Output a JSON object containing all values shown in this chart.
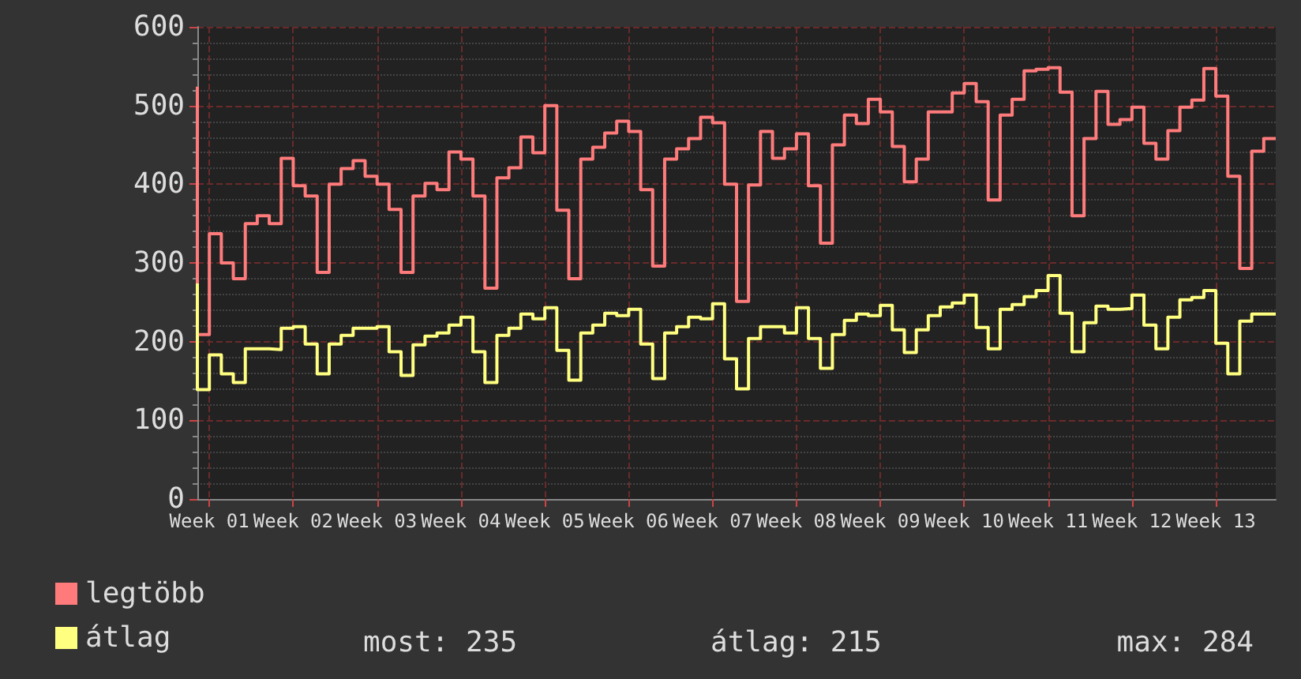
{
  "chart_data": {
    "type": "step",
    "categories": [
      null,
      "Week 01",
      null,
      null,
      null,
      null,
      null,
      null,
      "Week 02",
      null,
      null,
      null,
      null,
      null,
      null,
      "Week 03",
      null,
      null,
      null,
      null,
      null,
      null,
      "Week 04",
      null,
      null,
      null,
      null,
      null,
      null,
      "Week 05",
      null,
      null,
      null,
      null,
      null,
      null,
      "Week 06",
      null,
      null,
      null,
      null,
      null,
      null,
      "Week 07",
      null,
      null,
      null,
      null,
      null,
      null,
      "Week 08",
      null,
      null,
      null,
      null,
      null,
      null,
      "Week 09",
      null,
      null,
      null,
      null,
      null,
      null,
      "Week 10",
      null,
      null,
      null,
      null,
      null,
      null,
      "Week 11",
      null,
      null,
      null,
      null,
      null,
      null,
      "Week 12",
      null,
      null,
      null,
      null,
      null,
      null,
      "Week 13",
      null,
      null,
      null,
      null,
      null
    ],
    "series": [
      {
        "name": "legtöbb",
        "color": "#ff7b7b",
        "values": [
          524,
          209,
          337,
          300,
          280,
          350,
          360,
          350,
          433,
          398,
          385,
          288,
          400,
          420,
          430,
          410,
          400,
          368,
          288,
          385,
          401,
          393,
          441,
          432,
          385,
          268,
          408,
          421,
          460,
          440,
          500,
          367,
          280,
          432,
          447,
          465,
          480,
          467,
          393,
          296,
          432,
          445,
          458,
          485,
          478,
          400,
          251,
          399,
          467,
          433,
          445,
          464,
          398,
          325,
          450,
          488,
          477,
          508,
          492,
          448,
          403,
          432,
          492,
          492,
          516,
          528,
          505,
          380,
          488,
          508,
          544,
          546,
          548,
          517,
          360,
          458,
          518,
          476,
          482,
          498,
          452,
          432,
          468,
          498,
          507,
          547,
          512,
          410,
          293,
          442,
          458
        ]
      },
      {
        "name": "átlag",
        "color": "#ffff80",
        "values": [
          274,
          139,
          183,
          159,
          148,
          191,
          191,
          190,
          217,
          219,
          197,
          159,
          197,
          208,
          217,
          217,
          219,
          187,
          157,
          196,
          207,
          211,
          221,
          231,
          187,
          148,
          208,
          217,
          235,
          229,
          243,
          189,
          151,
          211,
          221,
          236,
          233,
          241,
          197,
          153,
          211,
          219,
          231,
          229,
          248,
          178,
          140,
          204,
          219,
          219,
          211,
          243,
          204,
          166,
          209,
          227,
          235,
          233,
          246,
          215,
          186,
          215,
          233,
          244,
          249,
          259,
          218,
          191,
          241,
          247,
          257,
          265,
          284,
          236,
          187,
          224,
          245,
          241,
          242,
          259,
          221,
          191,
          231,
          253,
          256,
          265,
          198,
          159,
          226,
          235,
          235
        ]
      }
    ],
    "ylim": [
      0,
      600
    ],
    "yticks": [
      0,
      100,
      200,
      300,
      400,
      500,
      600
    ],
    "grid": true,
    "legend": "bottom left",
    "annotations": [
      "most: 235",
      "átlag: 215",
      "max: 284"
    ]
  }
}
